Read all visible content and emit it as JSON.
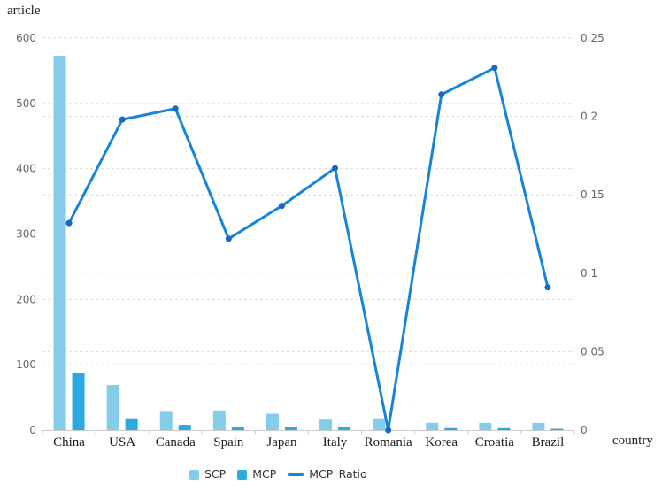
{
  "chart_data": {
    "type": "bar+line",
    "categories": [
      "China",
      "USA",
      "Canada",
      "Spain",
      "Japan",
      "Italy",
      "Romania",
      "Korea",
      "Croatia",
      "Brazil"
    ],
    "series": [
      {
        "name": "SCP",
        "type": "bar",
        "axis": "left",
        "color": "#85cbea",
        "values": [
          573,
          69,
          28,
          30,
          25,
          16,
          18,
          11,
          11,
          11
        ]
      },
      {
        "name": "MCP",
        "type": "bar",
        "axis": "left",
        "color": "#2ca9e1",
        "values": [
          87,
          18,
          8,
          5,
          5,
          4,
          0,
          3,
          3,
          2
        ]
      },
      {
        "name": "MCP_Ratio",
        "type": "line",
        "axis": "right",
        "color": "#1684d9",
        "marker_color": "#1a66c8",
        "values": [
          0.132,
          0.198,
          0.205,
          0.122,
          0.143,
          0.167,
          0,
          0.214,
          0.231,
          0.091
        ]
      }
    ],
    "left_axis": {
      "title": "article",
      "min": 0,
      "max": 600,
      "tick_step": 100,
      "tick_labels": [
        "0",
        "100",
        "200",
        "300",
        "400",
        "500",
        "600"
      ]
    },
    "right_axis": {
      "min": 0,
      "max": 0.25,
      "tick_step": 0.05,
      "tick_labels": [
        "0",
        "0.05",
        "0.1",
        "0.15",
        "0.2",
        "0.25"
      ]
    },
    "x_axis": {
      "title": "country"
    },
    "legend": {
      "position": "bottom",
      "items": [
        "SCP",
        "MCP",
        "MCP_Ratio"
      ]
    },
    "grid": "horizontal dashed lines for both left and right axis ticks"
  },
  "style_colors": {
    "background": "#ffffff",
    "grid_line": "#d9d9d9",
    "axis_line": "#cccccc",
    "tick_text": "#666666",
    "category_text": "#1a1a1a",
    "legend_text": "#333333"
  }
}
